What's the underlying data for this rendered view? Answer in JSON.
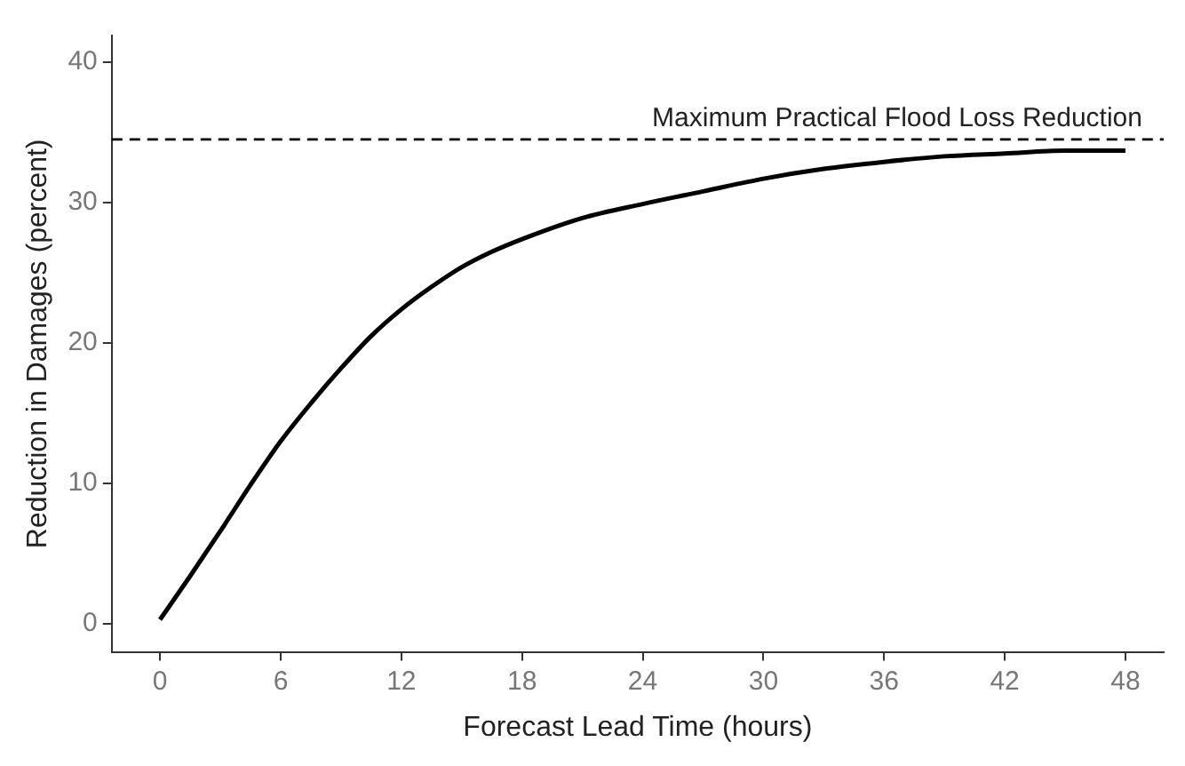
{
  "chart_data": {
    "type": "line",
    "xlabel": "Forecast Lead Time (hours)",
    "ylabel": "Reduction in Damages (percent)",
    "x": [
      0,
      1.5,
      3,
      4.5,
      6,
      7.5,
      9,
      10.5,
      12,
      13.5,
      15,
      16.5,
      18,
      21,
      24,
      27,
      30,
      33,
      36,
      39,
      42,
      45,
      48
    ],
    "series": [
      {
        "color": "#000000",
        "values": [
          0.3,
          3.4,
          6.6,
          9.9,
          13.0,
          15.7,
          18.2,
          20.5,
          22.4,
          24.0,
          25.4,
          26.5,
          27.4,
          28.9,
          29.9,
          30.8,
          31.7,
          32.4,
          32.9,
          33.3,
          33.5,
          33.7,
          33.7
        ]
      }
    ],
    "xlim": [
      -2.4,
      49.9
    ],
    "ylim": [
      -2,
      41.9
    ],
    "xticks": [
      0,
      6,
      12,
      18,
      24,
      30,
      36,
      42,
      48
    ],
    "yticks": [
      0,
      10,
      20,
      30,
      40
    ],
    "ref_lines": [
      {
        "axis": "y",
        "value": 34.5,
        "label": "Maximum Practical Flood Loss Reduction",
        "line_style": "dashed",
        "color": "#000000"
      }
    ],
    "grid": false,
    "legend": false,
    "marker": "none",
    "line_style": "solid"
  }
}
